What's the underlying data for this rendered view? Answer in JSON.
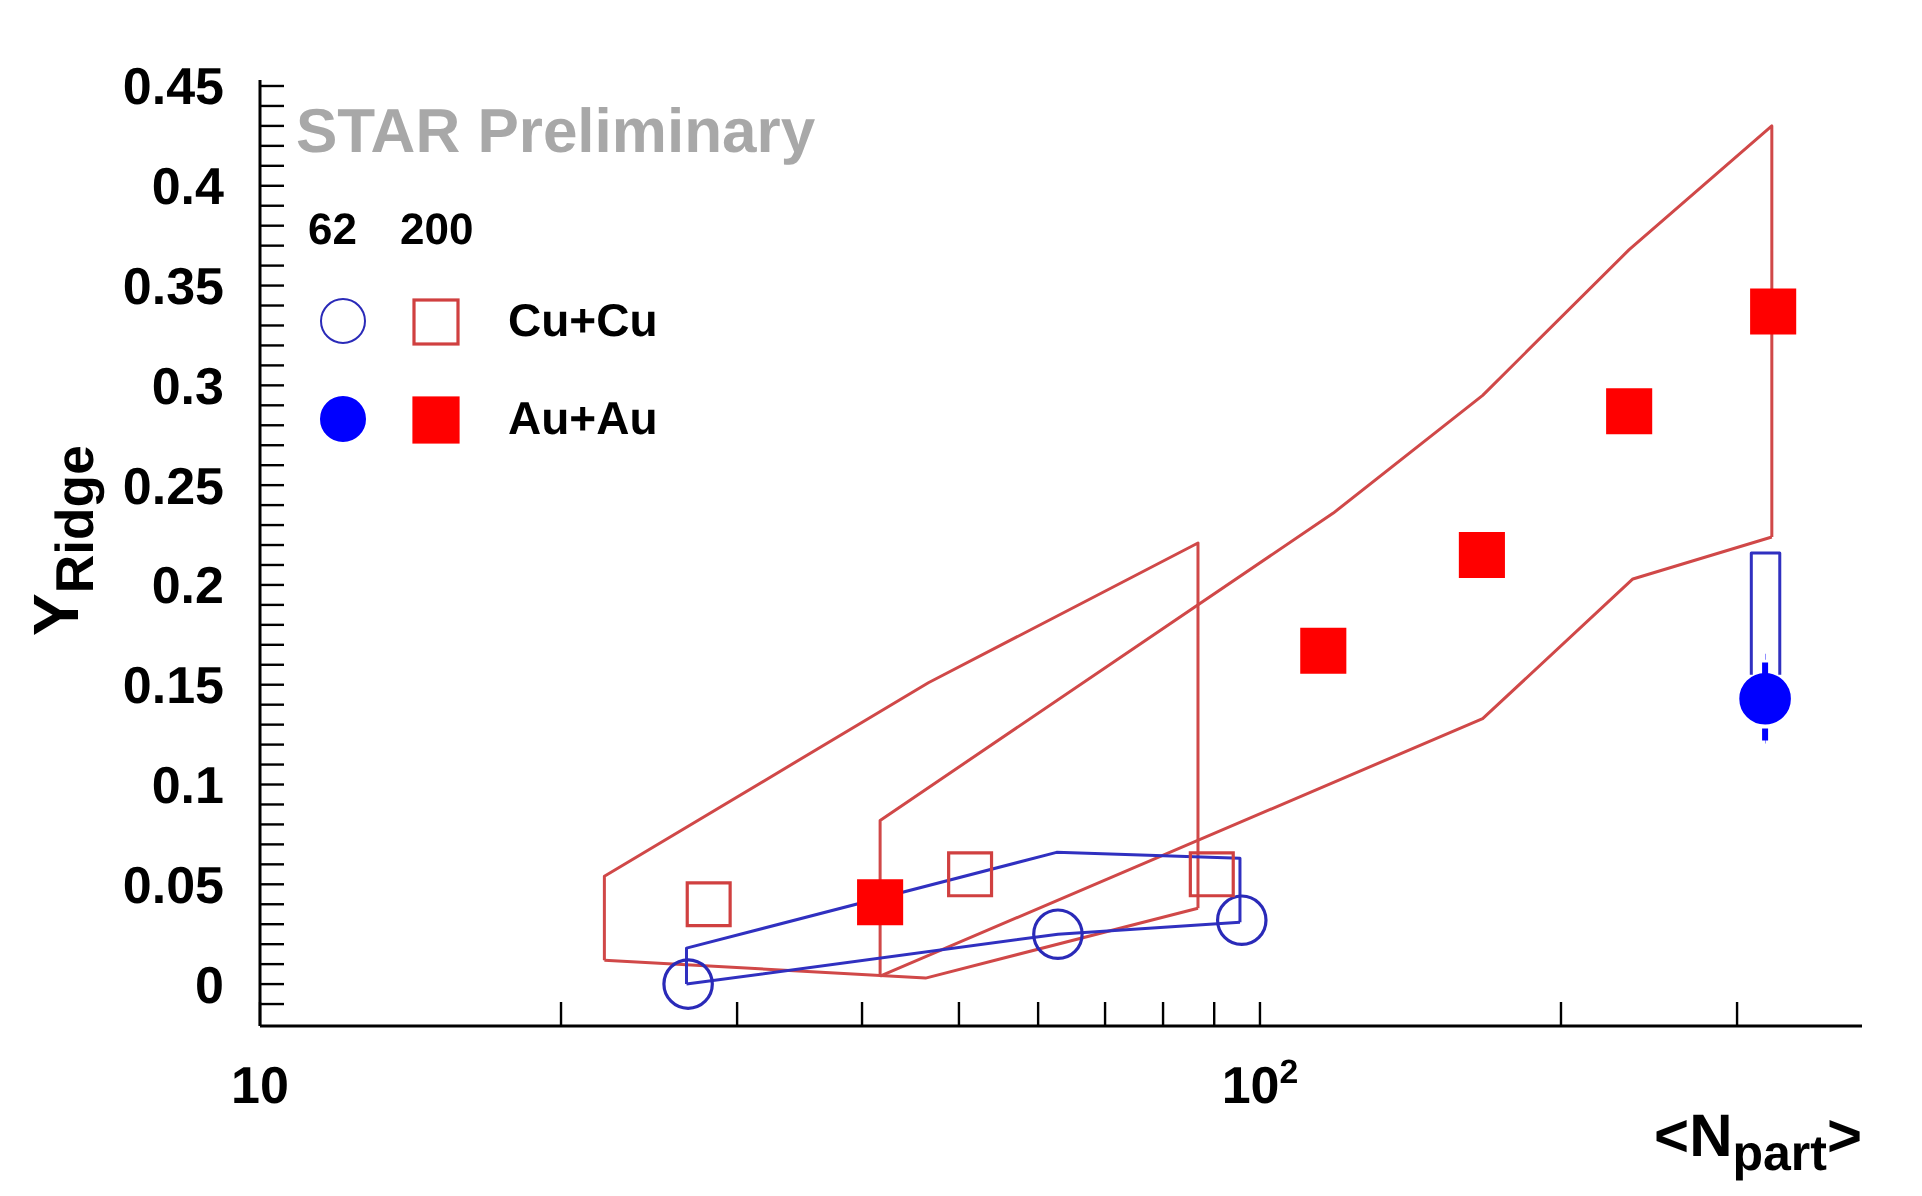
{
  "chart_data": {
    "type": "scatter",
    "xlabel": "<N$_{part}$>",
    "ylabel": "Y$_{Ridge}$",
    "annotations": [
      "STAR Preliminary",
      "62",
      "200"
    ],
    "log": "x",
    "legend": "top left",
    "xlim": [
      10,
      400
    ],
    "ylim": [
      -0.021,
      0.453
    ],
    "xticks": [
      10,
      {
        "value": 20,
        "label": null
      },
      {
        "value": 30,
        "label": null
      },
      {
        "value": 40,
        "label": null
      },
      {
        "value": 50,
        "label": null
      },
      {
        "value": 60,
        "label": null
      },
      {
        "value": 70,
        "label": null
      },
      {
        "value": 80,
        "label": null
      },
      {
        "value": 90,
        "label": null
      },
      {
        "value": 100,
        "label": "10$^{2}$"
      },
      {
        "value": 200,
        "label": null
      },
      {
        "value": 300,
        "label": null
      }
    ],
    "yticks": [
      {
        "value": -0.01,
        "label": null
      },
      0,
      {
        "value": 0.01,
        "label": null
      },
      {
        "value": 0.02,
        "label": null
      },
      {
        "value": 0.03,
        "label": null
      },
      {
        "value": 0.04,
        "label": null
      },
      0.05,
      {
        "value": 0.06,
        "label": null
      },
      {
        "value": 0.07,
        "label": null
      },
      {
        "value": 0.08,
        "label": null
      },
      {
        "value": 0.09,
        "label": null
      },
      0.1,
      {
        "value": 0.11,
        "label": null
      },
      {
        "value": 0.12,
        "label": null
      },
      {
        "value": 0.13,
        "label": null
      },
      {
        "value": 0.14,
        "label": null
      },
      0.15,
      {
        "value": 0.16,
        "label": null
      },
      {
        "value": 0.17,
        "label": null
      },
      {
        "value": 0.18,
        "label": null
      },
      {
        "value": 0.19,
        "label": null
      },
      0.2,
      {
        "value": 0.21,
        "label": null
      },
      {
        "value": 0.22,
        "label": null
      },
      {
        "value": 0.23,
        "label": null
      },
      {
        "value": 0.24,
        "label": null
      },
      0.25,
      {
        "value": 0.26,
        "label": null
      },
      {
        "value": 0.27,
        "label": null
      },
      {
        "value": 0.28,
        "label": null
      },
      {
        "value": 0.29,
        "label": null
      },
      0.3,
      {
        "value": 0.31,
        "label": null
      },
      {
        "value": 0.32,
        "label": null
      },
      {
        "value": 0.33,
        "label": null
      },
      {
        "value": 0.34,
        "label": null
      },
      0.35,
      {
        "value": 0.36,
        "label": null
      },
      {
        "value": 0.37,
        "label": null
      },
      {
        "value": 0.38,
        "label": null
      },
      {
        "value": 0.39,
        "label": null
      },
      0.4,
      {
        "value": 0.41,
        "label": null
      },
      {
        "value": 0.42,
        "label": null
      },
      {
        "value": 0.43,
        "label": null
      },
      {
        "value": 0.44,
        "label": null
      },
      0.45
    ],
    "series": [
      {
        "type": "line",
        "color": "#d04848",
        "x": [
          22.1,
          22.1,
          46.6,
          86.7,
          86.7
        ],
        "values": [
          0.012,
          0.054,
          0.151,
          0.221,
          0.038
        ]
      },
      {
        "type": "line",
        "color": "#d04848",
        "x": [
          22.1,
          46.3,
          86.7
        ],
        "values": [
          0.012,
          0.003,
          0.038
        ]
      },
      {
        "type": "line",
        "color": "#d04848",
        "x": [
          41.7,
          41.7,
          118.4,
          167,
          234,
          325,
          325
        ],
        "values": [
          0.004,
          0.082,
          0.236,
          0.295,
          0.368,
          0.43,
          0.224
        ]
      },
      {
        "type": "line",
        "color": "#d04848",
        "x": [
          41.7,
          167,
          236,
          325
        ],
        "values": [
          0.004,
          0.133,
          0.203,
          0.224
        ]
      },
      {
        "type": "line",
        "color": "#3030c0",
        "x": [
          26.7,
          26.7,
          62.6,
          95.5,
          95.5
        ],
        "values": [
          0,
          0.018,
          0.066,
          0.063,
          0.031
        ]
      },
      {
        "type": "line",
        "color": "#3030c0",
        "x": [
          26.7,
          62.8,
          95.5
        ],
        "values": [
          0,
          0.025,
          0.031
        ]
      },
      {
        "type": "line",
        "color": "#3030c0",
        "x": [
          310,
          310,
          331,
          331
        ],
        "values": [
          0.155,
          0.216,
          0.216,
          0.155
        ]
      },
      {
        "color": "#2a2ab8",
        "marker": "circle",
        "x": [
          26.8,
          62.8,
          95.9
        ],
        "values": [
          0,
          0.025,
          0.032
        ]
      },
      {
        "name": "Cu+Cu",
        "color": "#d04040",
        "marker": "square",
        "x": [
          28.1,
          51.3,
          89.5
        ],
        "values": [
          0.04,
          0.055,
          0.055
        ]
      },
      {
        "color": "#0000ff",
        "marker": "circle",
        "x": [
          320
        ],
        "values": [
          0.143
        ],
        "errors": [
          0.021
        ]
      },
      {
        "name": "Au+Au",
        "color": "#ff0000",
        "marker": "square",
        "x": [
          41.7,
          115.7,
          166.7,
          234,
          326
        ],
        "values": [
          0.041,
          0.167,
          0.215,
          0.287,
          0.337
        ]
      }
    ]
  }
}
